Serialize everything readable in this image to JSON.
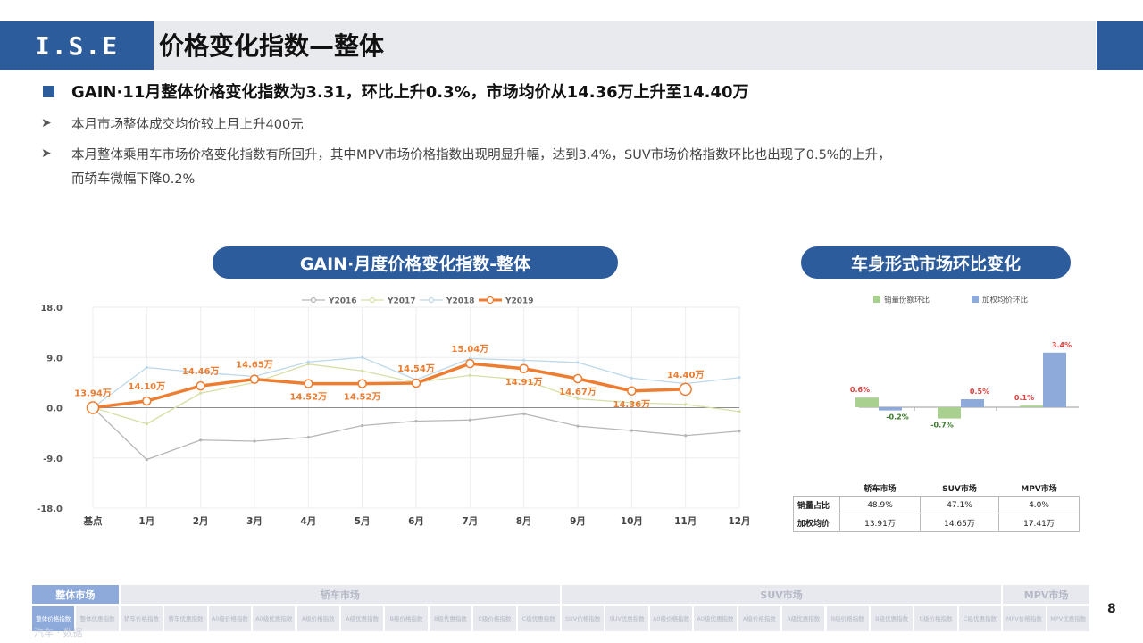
{
  "header": {
    "logo": "I.S.E",
    "title": "价格变化指数—整体"
  },
  "headline": "GAIN·11月整体价格变化指数为3.31，环比上升0.3%，市场均价从14.36万上升至14.40万",
  "bullets": [
    {
      "line1": "本月市场整体成交均价较上月上升400元",
      "line2": ""
    },
    {
      "line1": "本月整体乘用车市场价格变化指数有所回升，其中MPV市场价格指数出现明显升幅，达到3.4%，SUV市场价格指数环比也出现了0.5%的上升，",
      "line2": "而轿车微幅下降0.2%"
    }
  ],
  "section_left_title": "GAIN·月度价格变化指数-整体",
  "section_right_title": "车身形式市场环比变化",
  "line_chart": {
    "chart_data": {
      "type": "line",
      "categories": [
        "基点",
        "1月",
        "2月",
        "3月",
        "4月",
        "5月",
        "6月",
        "7月",
        "8月",
        "9月",
        "10月",
        "11月",
        "12月"
      ],
      "ylim": [
        -18,
        18
      ],
      "yticks": [
        "18.0",
        "9.0",
        "0.0",
        "-9.0",
        "-18.0"
      ],
      "ytick_values": [
        18,
        9,
        0,
        -9,
        -18
      ],
      "legend_position": "top",
      "series": [
        {
          "name": "Y2016",
          "color": "#b6b6b6",
          "values": [
            0,
            -9.3,
            -5.8,
            -6.0,
            -5.3,
            -3.2,
            -2.4,
            -2.2,
            -1.1,
            -3.3,
            -4.1,
            -5.0,
            -4.2
          ]
        },
        {
          "name": "Y2017",
          "color": "#d8dfa6",
          "values": [
            0,
            -2.9,
            2.6,
            4.5,
            7.8,
            6.6,
            4.5,
            5.8,
            5.0,
            1.6,
            0.9,
            0.6,
            -0.7
          ]
        },
        {
          "name": "Y2018",
          "color": "#bcd8ea",
          "values": [
            0,
            7.2,
            6.3,
            5.6,
            8.2,
            9.0,
            5.0,
            8.8,
            8.5,
            8.1,
            5.3,
            4.3,
            5.4
          ]
        },
        {
          "name": "Y2019",
          "color": "#ed7d31",
          "values": [
            0,
            1.2,
            3.9,
            5.1,
            4.3,
            4.3,
            4.4,
            7.9,
            7.0,
            5.2,
            3.0,
            3.3,
            null
          ]
        }
      ],
      "data_labels": [
        "13.94万",
        "14.10万",
        "14.46万",
        "14.65万",
        "14.52万",
        "14.52万",
        "14.54万",
        "15.04万",
        "14.91万",
        "14.67万",
        "14.36万",
        "14.40万"
      ],
      "label_side": [
        "above",
        "above",
        "above",
        "above",
        "below",
        "below",
        "above",
        "above",
        "below",
        "below",
        "below",
        "above"
      ]
    }
  },
  "bar_chart": {
    "chart_data": {
      "type": "bar",
      "categories": [
        "轿车市场",
        "SUV市场",
        "MPV市场"
      ],
      "series": [
        {
          "name": "销量份额环比",
          "color": "#a9d08e",
          "values": [
            0.6,
            -0.7,
            0.1
          ],
          "labels": [
            "0.6%",
            "-0.7%",
            "0.1%"
          ]
        },
        {
          "name": "加权均价环比",
          "color": "#8eaadb",
          "values": [
            -0.2,
            0.5,
            3.4
          ],
          "labels": [
            "-0.2%",
            "0.5%",
            "3.4%"
          ]
        }
      ],
      "legend_position": "top",
      "ylim": [
        -1.0,
        4.0
      ]
    },
    "table": {
      "columns": [
        "",
        "轿车市场",
        "SUV市场",
        "MPV市场"
      ],
      "rows": [
        {
          "label": "销量占比",
          "cells": [
            "48.9%",
            "47.1%",
            "4.0%"
          ]
        },
        {
          "label": "加权均价",
          "cells": [
            "13.91万",
            "14.65万",
            "17.41万"
          ]
        }
      ]
    }
  },
  "footer": {
    "groups": [
      {
        "label": "整体市场",
        "active": true
      },
      {
        "label": "轿车市场",
        "active": false
      },
      {
        "label": "SUV市场",
        "active": false
      },
      {
        "label": "MPV市场",
        "active": false
      }
    ],
    "subtabs": [
      "整体价格指数",
      "整体优惠指数",
      "轿车价格指数",
      "轿车优惠指数",
      "A0级价格指数",
      "A0级优惠指数",
      "A级价格指数",
      "A级优惠指数",
      "B级价格指数",
      "B级优惠指数",
      "C级价格指数",
      "C级优惠指数",
      "SUV价格指数",
      "SUV优惠指数",
      "A0级价格指数",
      "A0级优惠指数",
      "A级价格指数",
      "A级优惠指数",
      "B级价格指数",
      "B级优惠指数",
      "C级价格指数",
      "C级优惠指数",
      "MPV价格指数",
      "MPV优惠指数"
    ]
  },
  "page_number": "8",
  "watermark": "汽车 · 数据"
}
